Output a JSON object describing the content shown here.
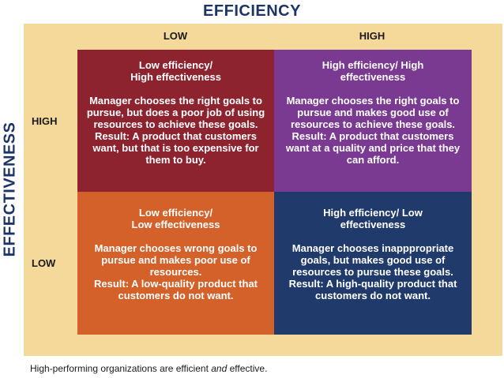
{
  "axis": {
    "x_title": "EFFICIENCY",
    "y_title": "EFFECTIVENESS",
    "x_low": "LOW",
    "x_high": "HIGH",
    "y_high": "HIGH",
    "y_low": "LOW"
  },
  "quadrants": {
    "top_left": {
      "heading": "Low efficiency/ High effectiveness",
      "description": "Manager chooses the right goals to pursue, but does a poor job of using resources to achieve these goals.",
      "result": "Result: A product that customers want, but that is too expensive for them to buy.",
      "color": "#8e2330"
    },
    "top_right": {
      "heading": "High efficiency/ High effectiveness",
      "description": "Manager chooses the right goals to pursue and makes good use of resources to achieve these goals.",
      "result": "Result: A product that customers want at a quality and price that they can afford.",
      "color": "#7b3a92"
    },
    "bottom_left": {
      "heading": "Low efficiency/ Low effectiveness",
      "description": "Manager chooses wrong goals to pursue and makes poor use of resources.",
      "result": "Result: A low-quality product that customers do not want.",
      "color": "#d4612a"
    },
    "bottom_right": {
      "heading": "High efficiency/ Low effectiveness",
      "description": "Manager chooses inapppropriate goals, but makes good use of resources to pursue these goals.",
      "result": "Result: A high-quality product that customers do not want.",
      "color": "#1f3a6b"
    }
  },
  "caption": {
    "prefix": "High-performing organizations are efficient ",
    "emphasis": "and",
    "suffix": " effective."
  }
}
